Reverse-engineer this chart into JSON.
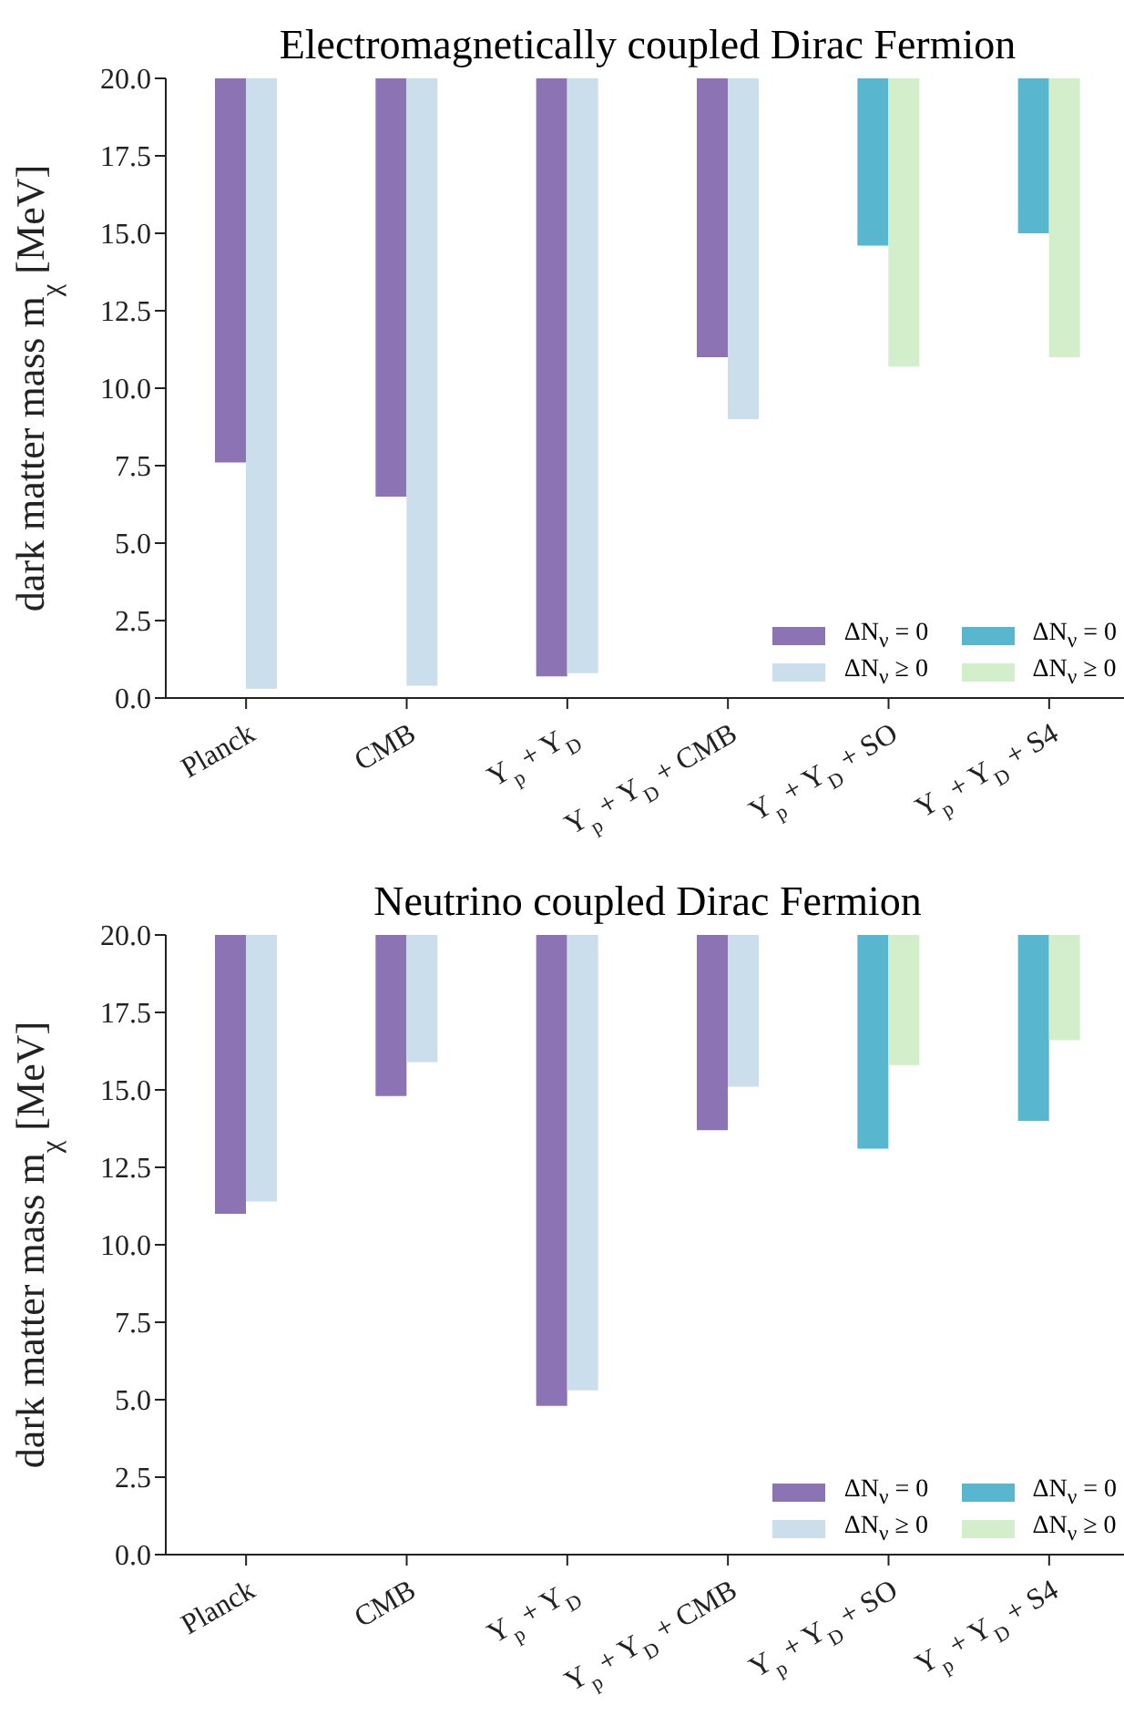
{
  "chart_data": [
    {
      "type": "bar",
      "title": "Electromagnetically coupled Dirac Fermion",
      "ylabel": "dark matter mass m$_{χ}$ [MeV]",
      "categories": [
        "Planck",
        "CMB",
        "Y$_{p}$ + Y$_{D}$",
        "Y$_{p}$ + Y$_{D}$ + CMB",
        "Y$_{p}$ + Y$_{D}$ + SO",
        "Y$_{p}$ + Y$_{D}$ + S4"
      ],
      "ylim": [
        0,
        20
      ],
      "yticks": [
        {
          "value": 0,
          "label": "0.0"
        },
        2.5,
        {
          "value": 5,
          "label": "5.0"
        },
        7.5,
        {
          "value": 10,
          "label": "10.0"
        },
        12.5,
        {
          "value": 15,
          "label": "15.0"
        },
        17.5,
        {
          "value": 20,
          "label": "20.0"
        }
      ],
      "legend": "bottom right",
      "series": [
        {
          "name": "ΔN$_{ν}$ = 0",
          "color": "#8c74b4",
          "base": [
            7.6,
            6.5,
            0.7,
            11.0,
            null,
            null
          ],
          "values": [
            12.4,
            13.5,
            19.3,
            9.0,
            null,
            null
          ]
        },
        {
          "name": "ΔN$_{ν}$ ≥ 0",
          "color": "#cbdeec",
          "base": [
            0.3,
            0.4,
            0.8,
            9.0,
            null,
            null
          ],
          "values": [
            19.7,
            19.6,
            19.2,
            11.0,
            null,
            null
          ]
        },
        {
          "name": "ΔN$_{ν}$ = 0",
          "color": "#58b6cf",
          "base": [
            null,
            null,
            null,
            null,
            14.6,
            15.0
          ],
          "values": [
            null,
            null,
            null,
            null,
            5.4,
            5.0
          ]
        },
        {
          "name": "ΔN$_{ν}$ ≥ 0",
          "color": "#d3eecb",
          "base": [
            null,
            null,
            null,
            null,
            10.7,
            11.0
          ],
          "values": [
            null,
            null,
            null,
            null,
            9.3,
            9.0
          ]
        }
      ]
    },
    {
      "type": "bar",
      "title": "Neutrino coupled Dirac Fermion",
      "ylabel": "dark matter mass m$_{χ}$ [MeV]",
      "categories": [
        "Planck",
        "CMB",
        "Y$_{p}$ + Y$_{D}$",
        "Y$_{p}$ + Y$_{D}$ + CMB",
        "Y$_{p}$ + Y$_{D}$ + SO",
        "Y$_{p}$ + Y$_{D}$ + S4"
      ],
      "ylim": [
        0,
        20
      ],
      "yticks": [
        {
          "value": 0,
          "label": "0.0"
        },
        2.5,
        {
          "value": 5,
          "label": "5.0"
        },
        7.5,
        {
          "value": 10,
          "label": "10.0"
        },
        12.5,
        {
          "value": 15,
          "label": "15.0"
        },
        17.5,
        {
          "value": 20,
          "label": "20.0"
        }
      ],
      "legend": "bottom right",
      "series": [
        {
          "name": "ΔN$_{ν}$ = 0",
          "color": "#8c74b4",
          "base": [
            11.0,
            14.8,
            4.8,
            13.7,
            null,
            null
          ],
          "values": [
            9.0,
            5.2,
            15.2,
            6.3,
            null,
            null
          ]
        },
        {
          "name": "ΔN$_{ν}$ ≥ 0",
          "color": "#cbdeec",
          "base": [
            11.4,
            15.9,
            5.3,
            15.1,
            null,
            null
          ],
          "values": [
            8.6,
            4.1,
            14.7,
            4.9,
            null,
            null
          ]
        },
        {
          "name": "ΔN$_{ν}$ = 0",
          "color": "#58b6cf",
          "base": [
            null,
            null,
            null,
            null,
            13.1,
            14.0
          ],
          "values": [
            null,
            null,
            null,
            null,
            6.9,
            6.0
          ]
        },
        {
          "name": "ΔN$_{ν}$ ≥ 0",
          "color": "#d3eecb",
          "base": [
            null,
            null,
            null,
            null,
            15.8,
            16.6
          ],
          "values": [
            null,
            null,
            null,
            null,
            4.2,
            3.4
          ]
        }
      ]
    }
  ]
}
